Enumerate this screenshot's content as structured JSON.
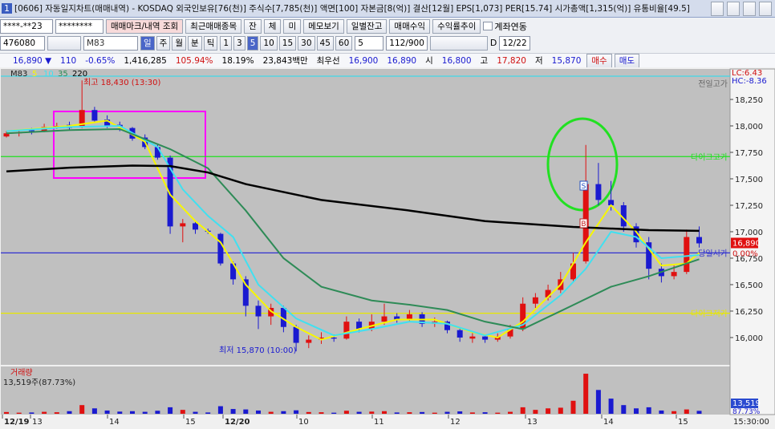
{
  "window": {
    "icon": "1",
    "title": "[0606] 자동일지차트(매매내역) - KOSDAQ 외국인보유[76(천)] 주식수[7,785(천)] 액면[100] 자본금[8(억)] 결산[12월] EPS[1,073] PER[15.74] 시가총액[1,315(억)] 유통비율[49.5]"
  },
  "toolbar1": {
    "account": "****-**23",
    "password": "********",
    "buttons": [
      "매매마크/내역 조회",
      "최근매매종목",
      "잔",
      "체",
      "미",
      "메모보기",
      "일별잔고",
      "매매수익",
      "수익률추이"
    ],
    "checkbox": "계좌연동"
  },
  "toolbar2": {
    "code": "476080",
    "indicator": "M83",
    "periods": [
      "일",
      "주",
      "월",
      "분",
      "틱"
    ],
    "minutes": [
      "1",
      "3",
      "5",
      "10",
      "15",
      "30",
      "45",
      "60"
    ],
    "count_select": "5",
    "count": "112/900",
    "d_label": "D",
    "date": "12/22"
  },
  "quote": {
    "price": "16,890 ▼",
    "change": "110",
    "rate": "-0.65%",
    "volume": "1,416,285",
    "vol_ratio": "105.94%",
    "turnover": "18.19%",
    "amount": "23,843백만",
    "best_label": "최우선",
    "ask": "16,900",
    "bid": "16,890",
    "open_label": "시",
    "open": "16,800",
    "high_label": "고",
    "high": "17,820",
    "low_label": "저",
    "low": "15,870",
    "buy": "매수",
    "sell": "매도"
  },
  "chart_data": {
    "type": "candlestick",
    "legend_title": "M83",
    "ylim": [
      15742,
      18538
    ],
    "yticks": [
      {
        "value": 16000,
        "label": "16,000"
      },
      {
        "value": 16250,
        "label": "16,250"
      },
      {
        "value": 16500,
        "label": "16,500"
      },
      {
        "value": 16750,
        "label": "16,750"
      },
      {
        "value": 17000,
        "label": "17,000"
      },
      {
        "value": 17250,
        "label": "17,250"
      },
      {
        "value": 17500,
        "label": "17,500"
      },
      {
        "value": 17750,
        "label": "17,750"
      },
      {
        "value": 18000,
        "label": "18,000"
      },
      {
        "value": 18250,
        "label": "18,250"
      }
    ],
    "open": [
      17900,
      17930,
      17960,
      17950,
      17990,
      18010,
      17990,
      18150,
      18060,
      18010,
      17980,
      17890,
      17800,
      17700,
      17050,
      17080,
      17010,
      16980,
      16700,
      16550,
      16300,
      16200,
      16280,
      16100,
      15950,
      15980,
      16000,
      15990,
      16150,
      16080,
      16150,
      16200,
      16170,
      16220,
      16130,
      16150,
      16070,
      15990,
      16010,
      15980,
      16010,
      16080,
      16320,
      16380,
      16450,
      16550,
      16720,
      17450,
      17300,
      17250,
      17050,
      16900,
      16650,
      16580,
      16620,
      16950
    ],
    "high": [
      17950,
      17960,
      17980,
      18020,
      18030,
      18040,
      18430,
      18180,
      18100,
      18040,
      17990,
      17920,
      17830,
      17720,
      17120,
      17100,
      17030,
      16990,
      16720,
      16580,
      16350,
      16320,
      16300,
      16120,
      16020,
      16050,
      16030,
      16200,
      16180,
      16220,
      16320,
      16230,
      16260,
      16240,
      16190,
      16160,
      16090,
      16050,
      16030,
      16040,
      16120,
      16380,
      16420,
      16500,
      16620,
      16800,
      17820,
      17650,
      17480,
      17280,
      17080,
      16950,
      16700,
      16680,
      17020,
      17050
    ],
    "low": [
      17890,
      17900,
      17920,
      17940,
      17970,
      17960,
      17980,
      18030,
      17980,
      17950,
      17860,
      17780,
      17680,
      16980,
      16900,
      16980,
      16980,
      16680,
      16500,
      16200,
      16080,
      16120,
      16050,
      15870,
      15900,
      15940,
      15960,
      15980,
      16050,
      16060,
      16120,
      16140,
      16150,
      16100,
      16100,
      16040,
      15960,
      15950,
      15950,
      15960,
      15990,
      16060,
      16280,
      16350,
      16420,
      16520,
      16700,
      17250,
      17200,
      17000,
      16850,
      16550,
      16520,
      16550,
      16600,
      16850
    ],
    "close": [
      17930,
      17940,
      17950,
      17990,
      18000,
      17980,
      18150,
      18050,
      18000,
      17990,
      17880,
      17800,
      17700,
      17050,
      17080,
      17020,
      17000,
      16700,
      16550,
      16300,
      16200,
      16280,
      16100,
      15950,
      15980,
      16000,
      15990,
      16150,
      16080,
      16150,
      16200,
      16170,
      16220,
      16130,
      16150,
      16070,
      16000,
      16010,
      15980,
      16010,
      16080,
      16320,
      16380,
      16450,
      16550,
      16700,
      17450,
      17300,
      17250,
      17050,
      16900,
      16650,
      16580,
      16620,
      16950,
      16890
    ],
    "up_color": "#e01010",
    "down_color": "#1a1ad0",
    "series": [
      {
        "name": "5",
        "color": "#f7f700",
        "x": [
          0,
          5,
          8,
          11,
          13,
          15,
          17,
          19,
          21,
          23,
          25,
          28,
          31,
          34,
          37,
          39,
          41,
          44,
          46,
          48,
          50,
          52,
          54,
          55
        ],
        "values": [
          17950,
          18000,
          18050,
          17850,
          17350,
          17100,
          16900,
          16500,
          16250,
          16100,
          15980,
          16080,
          16170,
          16170,
          16050,
          16000,
          16150,
          16500,
          16900,
          17250,
          17000,
          16680,
          16700,
          16800
        ]
      },
      {
        "name": "10",
        "color": "#40e0f0",
        "x": [
          0,
          5,
          9,
          12,
          14,
          16,
          18,
          20,
          23,
          26,
          29,
          32,
          35,
          38,
          41,
          44,
          46,
          48,
          50,
          52,
          55
        ],
        "values": [
          17950,
          17990,
          18000,
          17800,
          17400,
          17150,
          16950,
          16500,
          16180,
          16020,
          16080,
          16150,
          16130,
          16020,
          16120,
          16400,
          16650,
          17000,
          16950,
          16750,
          16780
        ]
      },
      {
        "name": "35",
        "color": "#2e8b57",
        "x": [
          0,
          5,
          9,
          13,
          16,
          19,
          22,
          25,
          29,
          32,
          35,
          38,
          41,
          44,
          48,
          51,
          55
        ],
        "values": [
          17930,
          17960,
          17970,
          17780,
          17600,
          17200,
          16750,
          16480,
          16350,
          16310,
          16260,
          16150,
          16080,
          16250,
          16480,
          16580,
          16740
        ]
      },
      {
        "name": "220",
        "color": "#000000",
        "x": [
          0,
          5,
          10,
          13,
          16,
          19,
          25,
          32,
          38,
          45,
          51,
          55
        ],
        "values": [
          17570,
          17605,
          17625,
          17620,
          17560,
          17450,
          17300,
          17200,
          17100,
          17045,
          17015,
          17008
        ]
      }
    ],
    "ref_lines": [
      {
        "value": 18470,
        "label": "전일고가",
        "color": "#40d8e8"
      },
      {
        "value": 17710,
        "label": "다이크고가",
        "color": "#20e020"
      },
      {
        "value": 16800,
        "label": "당일시가",
        "color": "#3030d0"
      },
      {
        "value": 16230,
        "label": "다이크저가",
        "color": "#e8e800"
      }
    ],
    "annotations": {
      "high": "최고 18,430 (13:30)",
      "low": "최저 15,870 (10:00)",
      "lc": "LC:6.43",
      "hc": "HC:-8.36"
    },
    "trade_marks": [
      "S",
      "B"
    ],
    "last_price": {
      "value": 16890,
      "label": "16,890"
    },
    "last_rate": "0.00%",
    "time_labels": [
      "12/19",
      "13",
      "14",
      "15",
      "12/20",
      "10",
      "11",
      "12",
      "13",
      "14",
      "15"
    ],
    "time_now": "15:30:00",
    "volume": {
      "title": "거래량",
      "label": "13,519주(87.73%)",
      "last_label": "13,519",
      "last_rate": "87.73%",
      "ylim": [
        0,
        200000
      ],
      "values": [
        8000,
        5000,
        6000,
        9000,
        7000,
        12000,
        40000,
        25000,
        15000,
        10000,
        12000,
        9000,
        14000,
        30000,
        18000,
        9000,
        6000,
        35000,
        22000,
        20000,
        15000,
        9000,
        12000,
        16000,
        8000,
        7000,
        5000,
        14000,
        9000,
        10000,
        12000,
        6000,
        7000,
        8000,
        5000,
        9000,
        11000,
        6000,
        7000,
        5000,
        9000,
        30000,
        18000,
        25000,
        28000,
        60000,
        185000,
        110000,
        70000,
        40000,
        25000,
        30000,
        15000,
        12000,
        20000,
        13519
      ]
    }
  }
}
